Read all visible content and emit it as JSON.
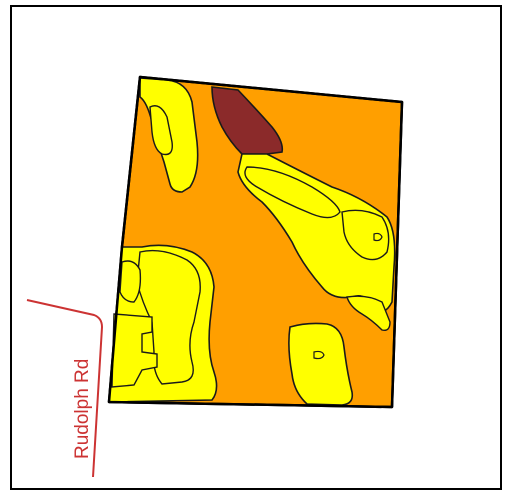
{
  "map": {
    "road_label": "Rudolph Rd",
    "colors": {
      "frame": "#000000",
      "parcel_fill": "#ff9f00",
      "soil_yellow": "#ffff00",
      "soil_darkred": "#8b2a2a",
      "soil_outline": "#1a1a1a",
      "road": "#cc3333"
    }
  }
}
